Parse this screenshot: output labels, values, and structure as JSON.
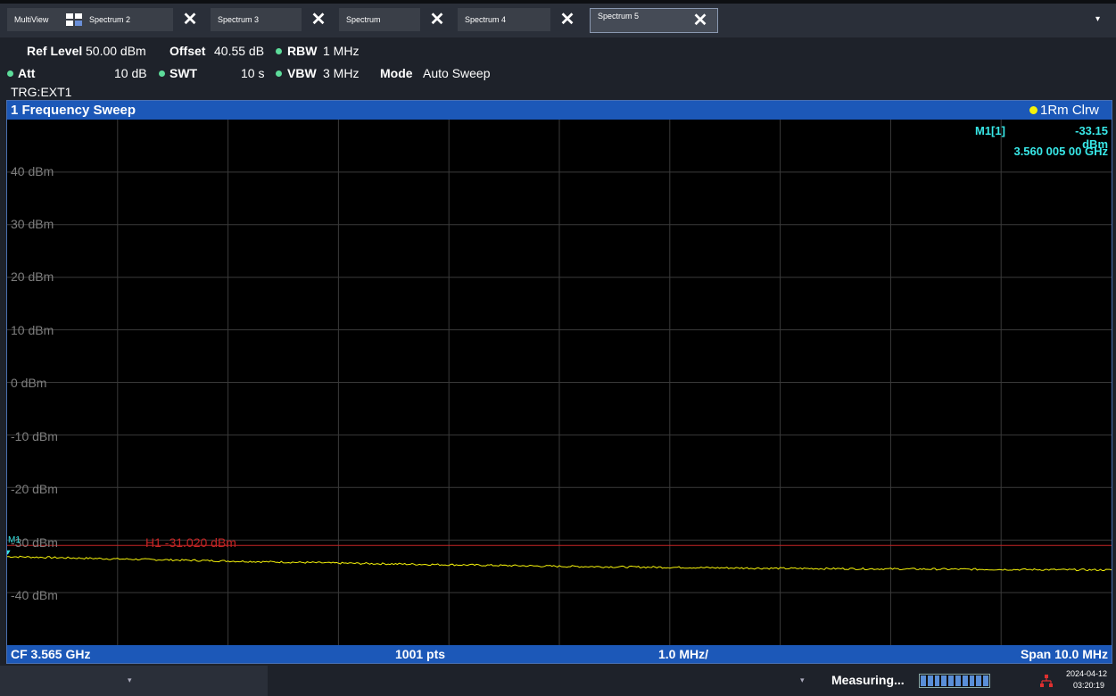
{
  "tabs": [
    {
      "label": "MultiView",
      "close": false
    },
    {
      "label": "Spectrum 2",
      "close": true
    },
    {
      "label": "Spectrum 3",
      "close": true
    },
    {
      "label": "Spectrum",
      "close": true
    },
    {
      "label": "Spectrum 4",
      "close": true
    },
    {
      "label": "Spectrum 5",
      "close": true,
      "active": true
    }
  ],
  "tab_close_glyph": "✕",
  "dropdown_glyph": "▾",
  "settings": {
    "ref_level_label": "Ref Level",
    "ref_level_value": "50.00 dBm",
    "offset_label": "Offset",
    "offset_value": "40.55 dB",
    "rbw_label": "RBW",
    "rbw_value": "1 MHz",
    "att_label": "Att",
    "att_value": "10 dB",
    "swt_label": "SWT",
    "swt_value": "10 s",
    "vbw_label": "VBW",
    "vbw_value": "3 MHz",
    "mode_label": "Mode",
    "mode_value": "Auto Sweep",
    "trigger": "TRG:EXT1"
  },
  "diagram": {
    "title": "1 Frequency Sweep",
    "trace_info": "1Rm Clrw",
    "marker_name": "M1[1]",
    "marker_level": "-33.15 dBm",
    "marker_freq": "3.560 005 00 GHz",
    "marker_tag": "M1",
    "hline_label": "H1 -31.020 dBm",
    "y_labels": [
      "40 dBm",
      "30 dBm",
      "20 dBm",
      "10 dBm",
      "0 dBm",
      "-10 dBm",
      "-20 dBm",
      "-30 dBm",
      "-40 dBm"
    ],
    "footer_cf": "CF 3.565 GHz",
    "footer_pts": "1001 pts",
    "footer_div": "1.0 MHz/",
    "footer_span": "Span 10.0 MHz"
  },
  "colors": {
    "trace": "#f5f20a",
    "hline": "#c42525",
    "grid": "#3a3a3a",
    "marker": "#38e8e8",
    "header_blue": "#1c58b8"
  },
  "status": {
    "measuring": "Measuring...",
    "date": "2024-04-12",
    "time": "03:20:19",
    "progress_segments": 10,
    "chevron": "▾"
  },
  "chart_data": {
    "type": "line",
    "xlabel": "",
    "ylabel": "",
    "x_center_ghz": 3.565,
    "x_span_mhz": 10.0,
    "x_range_ghz": [
      3.56,
      3.57
    ],
    "ylim": [
      -50,
      50
    ],
    "y_ticks": [
      40,
      30,
      20,
      10,
      0,
      -10,
      -20,
      -30,
      -40
    ],
    "grid": true,
    "series": [
      {
        "name": "1Rm Clrw",
        "x": [
          3.56,
          3.561,
          3.562,
          3.563,
          3.564,
          3.565,
          3.566,
          3.567,
          3.568,
          3.569,
          3.57
        ],
        "values": [
          -33.15,
          -33.6,
          -34.0,
          -34.4,
          -34.7,
          -35.0,
          -35.2,
          -35.4,
          -35.5,
          -35.6,
          -35.7
        ]
      }
    ],
    "hline": {
      "label": "H1",
      "value": -31.02
    },
    "marker": {
      "name": "M1",
      "x": 3.560005,
      "y": -33.15
    }
  }
}
